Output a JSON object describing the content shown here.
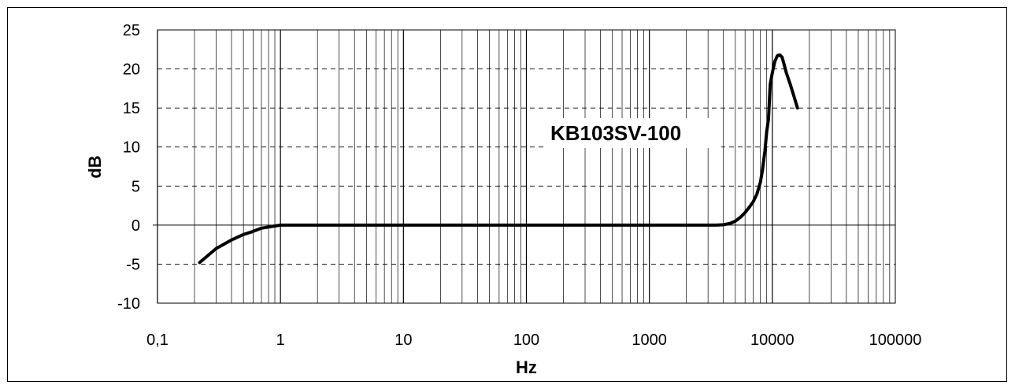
{
  "chart_data": {
    "type": "line",
    "title": "",
    "xlabel": "Hz",
    "ylabel": "dB",
    "xscale": "log",
    "xlim": [
      0.1,
      100000
    ],
    "ylim": [
      -10,
      25
    ],
    "x_tick_labels": [
      "0,1",
      "1",
      "10",
      "100",
      "1000",
      "10000",
      "100000"
    ],
    "y_tick_labels": [
      "25",
      "20",
      "15",
      "10",
      "5",
      "0",
      "-5",
      "-10"
    ],
    "y_ticks": [
      25,
      20,
      15,
      10,
      5,
      0,
      -5,
      -10
    ],
    "grid": {
      "x_minor": true,
      "y_major": "dashed"
    },
    "legend": "none",
    "annotation": "KB103SV-100",
    "series": [
      {
        "color": "#000000",
        "x": [
          0.22,
          0.3,
          0.4,
          0.5,
          0.6,
          0.7,
          0.8,
          0.9,
          1.0,
          1.2,
          2,
          10,
          100,
          1000,
          3500,
          4000,
          4500,
          5000,
          5500,
          6000,
          6500,
          7000,
          7500,
          8000,
          8300,
          8700,
          9000,
          9300,
          9600,
          10000,
          10500,
          11000,
          11500,
          12000,
          12500,
          13000,
          14000,
          15000,
          16000
        ],
        "y": [
          -4.8,
          -3.0,
          -1.9,
          -1.2,
          -0.8,
          -0.4,
          -0.25,
          -0.12,
          0,
          0,
          0,
          0,
          0,
          0,
          0,
          0.05,
          0.2,
          0.5,
          1.0,
          1.6,
          2.3,
          3.0,
          4.0,
          5.5,
          7.0,
          9.5,
          12.0,
          13.5,
          18.0,
          19.5,
          21.0,
          21.7,
          21.8,
          21.5,
          20.5,
          19.5,
          18.0,
          16.5,
          15.0
        ]
      }
    ]
  }
}
